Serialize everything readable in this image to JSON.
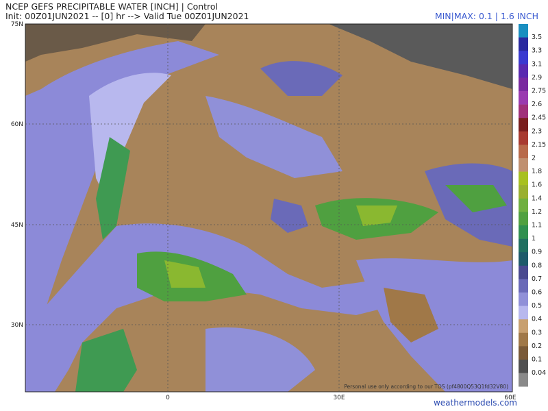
{
  "header": {
    "title": "NCEP GEFS PRECIPITABLE WATER [INCH] | Control",
    "subtitle": "Init: 00Z01JUN2021 -- [0] hr --> Valid Tue 00Z01JUN2021",
    "minmax": "MIN|MAX: 0.1 | 1.6 INCH"
  },
  "map": {
    "lat_labels": [
      "75N",
      "60N",
      "45N",
      "30N"
    ],
    "lon_labels": [
      "0",
      "30E",
      "60E"
    ],
    "notice": "Personal use only according to our TOS (pf4800Q53Q1fd32V80)",
    "watermark": "weathermodels.com"
  },
  "colorbar": {
    "labels": [
      "3.5",
      "3.3",
      "3.1",
      "2.9",
      "2.75",
      "2.6",
      "2.45",
      "2.3",
      "2.15",
      "2",
      "1.8",
      "1.6",
      "1.4",
      "1.2",
      "1.1",
      "1",
      "0.9",
      "0.8",
      "0.7",
      "0.6",
      "0.5",
      "0.4",
      "0.3",
      "0.2",
      "0.1",
      "0.04"
    ],
    "colors": [
      "#1a8fc0",
      "#2a2aa0",
      "#3a3ad0",
      "#5a2ab0",
      "#7a2aa0",
      "#9a3ab0",
      "#a0307a",
      "#7a1e1e",
      "#a83a30",
      "#b86a4a",
      "#c09070",
      "#a8c020",
      "#9ab030",
      "#70b040",
      "#50a040",
      "#309050",
      "#207060",
      "#1e5a6a",
      "#4a4a90",
      "#6a6ab8",
      "#9090d8",
      "#b8b8ee",
      "#c8a070",
      "#a07848",
      "#7a5a38",
      "#505050",
      "#8a8a8a"
    ]
  }
}
